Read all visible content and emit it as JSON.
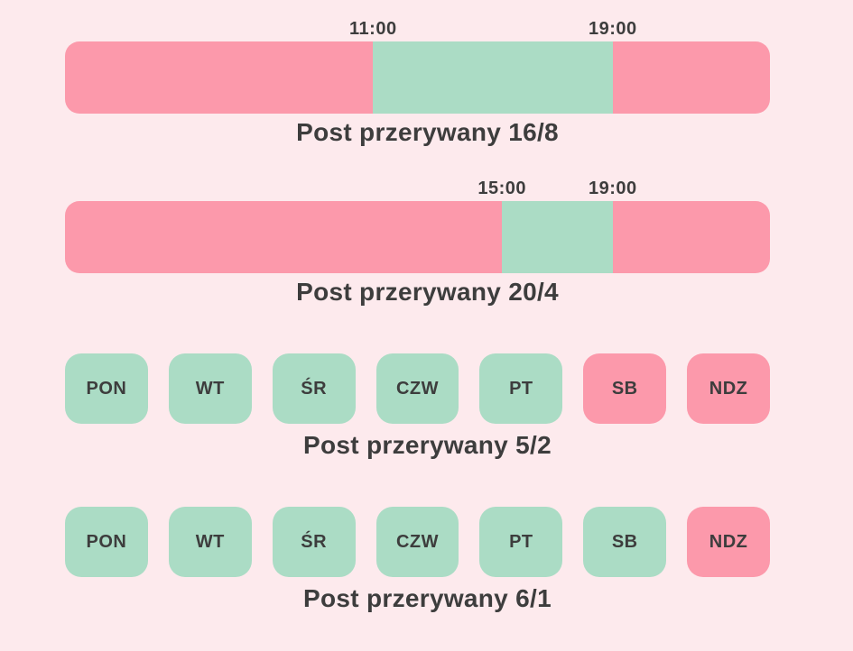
{
  "colors": {
    "fasting": "#fc99ab",
    "eating": "#abdcc5",
    "background": "#fdeaed",
    "text": "#3d3d3d"
  },
  "sections": [
    {
      "type": "timeline",
      "caption": "Post przerywany 16/8",
      "markers": [
        {
          "label": "11:00",
          "position_pct": 43.7
        },
        {
          "label": "19:00",
          "position_pct": 77.7
        }
      ],
      "segments": [
        {
          "state": "fasting",
          "width_pct": 43.7
        },
        {
          "state": "eating",
          "width_pct": 34.0
        },
        {
          "state": "fasting",
          "width_pct": 22.3
        }
      ]
    },
    {
      "type": "timeline",
      "caption": "Post przerywany 20/4",
      "markers": [
        {
          "label": "15:00",
          "position_pct": 62.0
        },
        {
          "label": "19:00",
          "position_pct": 77.7
        }
      ],
      "segments": [
        {
          "state": "fasting",
          "width_pct": 62.0
        },
        {
          "state": "eating",
          "width_pct": 15.7
        },
        {
          "state": "fasting",
          "width_pct": 22.3
        }
      ]
    },
    {
      "type": "week",
      "caption": "Post przerywany 5/2",
      "days": [
        {
          "label": "PON",
          "state": "eating"
        },
        {
          "label": "WT",
          "state": "eating"
        },
        {
          "label": "ŚR",
          "state": "eating"
        },
        {
          "label": "CZW",
          "state": "eating"
        },
        {
          "label": "PT",
          "state": "eating"
        },
        {
          "label": "SB",
          "state": "fasting"
        },
        {
          "label": "NDZ",
          "state": "fasting"
        }
      ]
    },
    {
      "type": "week",
      "caption": "Post przerywany 6/1",
      "days": [
        {
          "label": "PON",
          "state": "eating"
        },
        {
          "label": "WT",
          "state": "eating"
        },
        {
          "label": "ŚR",
          "state": "eating"
        },
        {
          "label": "CZW",
          "state": "eating"
        },
        {
          "label": "PT",
          "state": "eating"
        },
        {
          "label": "SB",
          "state": "eating"
        },
        {
          "label": "NDZ",
          "state": "fasting"
        }
      ]
    }
  ]
}
